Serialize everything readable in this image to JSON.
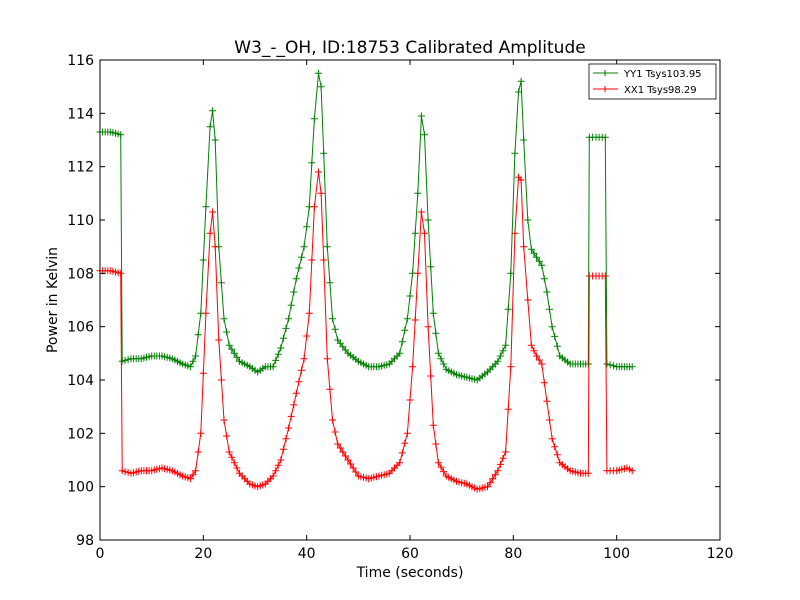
{
  "chart_data": {
    "type": "line",
    "title": "W3_-_OH, ID:18753 Calibrated Amplitude",
    "xlabel": "Time (seconds)",
    "ylabel": "Power in Kelvin",
    "xlim": [
      0,
      120
    ],
    "ylim": [
      98,
      116
    ],
    "xticks": [
      0,
      20,
      40,
      60,
      80,
      100,
      120
    ],
    "yticks": [
      98,
      100,
      102,
      104,
      106,
      108,
      110,
      112,
      114,
      116
    ],
    "grid": false,
    "legend_position": "top-right",
    "series": [
      {
        "name": "YY1 Tsys103.95",
        "color": "#008000",
        "marker": "+",
        "x": [
          0,
          2,
          4,
          4.3,
          6,
          8,
          10,
          12,
          14,
          16,
          17.5,
          18.5,
          19.5,
          20.5,
          21.3,
          21.8,
          22.3,
          23,
          24,
          25,
          27,
          29,
          30.5,
          32,
          33.5,
          35,
          36.5,
          38,
          39.5,
          40.5,
          41.5,
          42.3,
          42.8,
          43.3,
          44,
          45,
          46,
          48,
          50,
          52,
          54,
          56,
          58,
          59.5,
          60.5,
          61.5,
          62.2,
          62.8,
          63.5,
          64.5,
          65.5,
          67,
          69,
          71,
          73,
          75,
          77,
          78.5,
          79.5,
          80.3,
          81,
          81.5,
          82,
          82.8,
          83.5,
          84.5,
          85.5,
          86.5,
          87.5,
          89,
          91,
          93,
          94.5,
          94.7,
          96,
          97.8,
          98.1,
          100,
          102,
          103
        ],
        "y": [
          113.3,
          113.3,
          113.2,
          104.7,
          104.8,
          104.8,
          104.9,
          104.9,
          104.8,
          104.6,
          104.5,
          104.9,
          106.5,
          110.5,
          113.5,
          114.1,
          113.0,
          109.0,
          106.3,
          105.3,
          104.7,
          104.5,
          104.3,
          104.5,
          104.5,
          105.2,
          106.3,
          107.8,
          109.0,
          110.5,
          113.8,
          115.5,
          115.0,
          112.5,
          109.0,
          106.3,
          105.5,
          105.0,
          104.7,
          104.5,
          104.5,
          104.6,
          105.0,
          106.3,
          108.0,
          111.0,
          113.9,
          113.2,
          110.0,
          106.5,
          105.0,
          104.4,
          104.2,
          104.1,
          104.0,
          104.3,
          104.7,
          105.3,
          108.0,
          112.5,
          114.8,
          115.2,
          113.0,
          110.0,
          108.9,
          108.6,
          108.3,
          107.3,
          106.0,
          104.9,
          104.6,
          104.6,
          104.6,
          113.1,
          113.1,
          113.1,
          104.6,
          104.5,
          104.5,
          104.5
        ]
      },
      {
        "name": "XX1 Tsys98.29",
        "color": "#ff0000",
        "marker": "+",
        "x": [
          0,
          2,
          4,
          4.3,
          6,
          8,
          10,
          12,
          14,
          16,
          17.5,
          18.5,
          19.5,
          20.5,
          21.3,
          21.8,
          22.3,
          23,
          24,
          25,
          27,
          29,
          30.5,
          32,
          33.5,
          35,
          36.5,
          38,
          39.5,
          40.5,
          41.5,
          42.3,
          42.8,
          43.3,
          44,
          45,
          46,
          48,
          50,
          52,
          54,
          56,
          58,
          59.5,
          60.5,
          61.5,
          62.2,
          62.8,
          63.5,
          64.5,
          65.5,
          67,
          69,
          71,
          73,
          75,
          77,
          78.5,
          79.5,
          80.3,
          81,
          81.5,
          82,
          82.8,
          83.5,
          84.5,
          85.5,
          86.5,
          87.5,
          89,
          91,
          93,
          94.5,
          94.7,
          96,
          97.8,
          98.1,
          100,
          102,
          103
        ],
        "y": [
          108.1,
          108.1,
          108.0,
          100.6,
          100.5,
          100.6,
          100.6,
          100.7,
          100.6,
          100.4,
          100.3,
          100.6,
          102.0,
          106.5,
          109.5,
          110.3,
          109.0,
          105.5,
          102.5,
          101.3,
          100.5,
          100.1,
          100.0,
          100.1,
          100.4,
          101.0,
          102.2,
          103.5,
          104.8,
          106.5,
          110.5,
          111.8,
          111.0,
          108.5,
          104.8,
          102.5,
          101.6,
          101.0,
          100.4,
          100.3,
          100.4,
          100.5,
          100.9,
          102.0,
          104.5,
          108.0,
          110.3,
          109.5,
          106.0,
          102.3,
          100.9,
          100.4,
          100.2,
          100.1,
          99.9,
          100.0,
          100.6,
          101.3,
          104.5,
          109.5,
          111.6,
          111.5,
          109.0,
          107.0,
          105.3,
          104.9,
          104.6,
          103.2,
          101.8,
          100.9,
          100.6,
          100.5,
          100.5,
          107.9,
          107.9,
          107.9,
          100.6,
          100.6,
          100.7,
          100.6
        ]
      }
    ]
  }
}
